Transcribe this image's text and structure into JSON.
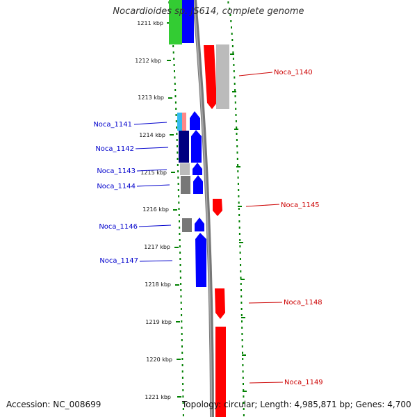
{
  "title": "Nocardioides sp. JS614, complete genome",
  "footer": {
    "accession": "Accession: NC_008699",
    "summary": "Topology: circular; Length: 4,985,871 bp; Genes: 4,700"
  },
  "ticks": [
    "1211 kbp",
    "1212 kbp",
    "1213 kbp",
    "1214 kbp",
    "1215 kbp",
    "1216 kbp",
    "1217 kbp",
    "1218 kbp",
    "1219 kbp",
    "1220 kbp",
    "1221 kbp"
  ],
  "gene_labels": {
    "left": [
      "Noca_1141",
      "Noca_1142",
      "Noca_1143",
      "Noca_1144",
      "Noca_1146",
      "Noca_1147"
    ],
    "right": [
      "Noca_1140",
      "Noca_1145",
      "Noca_1148",
      "Noca_1149"
    ]
  },
  "colors": {
    "forward": "#0000ff",
    "reverse": "#ff0000",
    "forward_label": "#0000cc",
    "reverse_label": "#cc0000",
    "dark_blue": "#000080",
    "grey": "#777777",
    "light_grey": "#bbbbbb",
    "green": "#33cc33",
    "cyan": "#33bbee",
    "pink": "#ff8888",
    "backbone": "#888888",
    "dots": "#008000"
  }
}
